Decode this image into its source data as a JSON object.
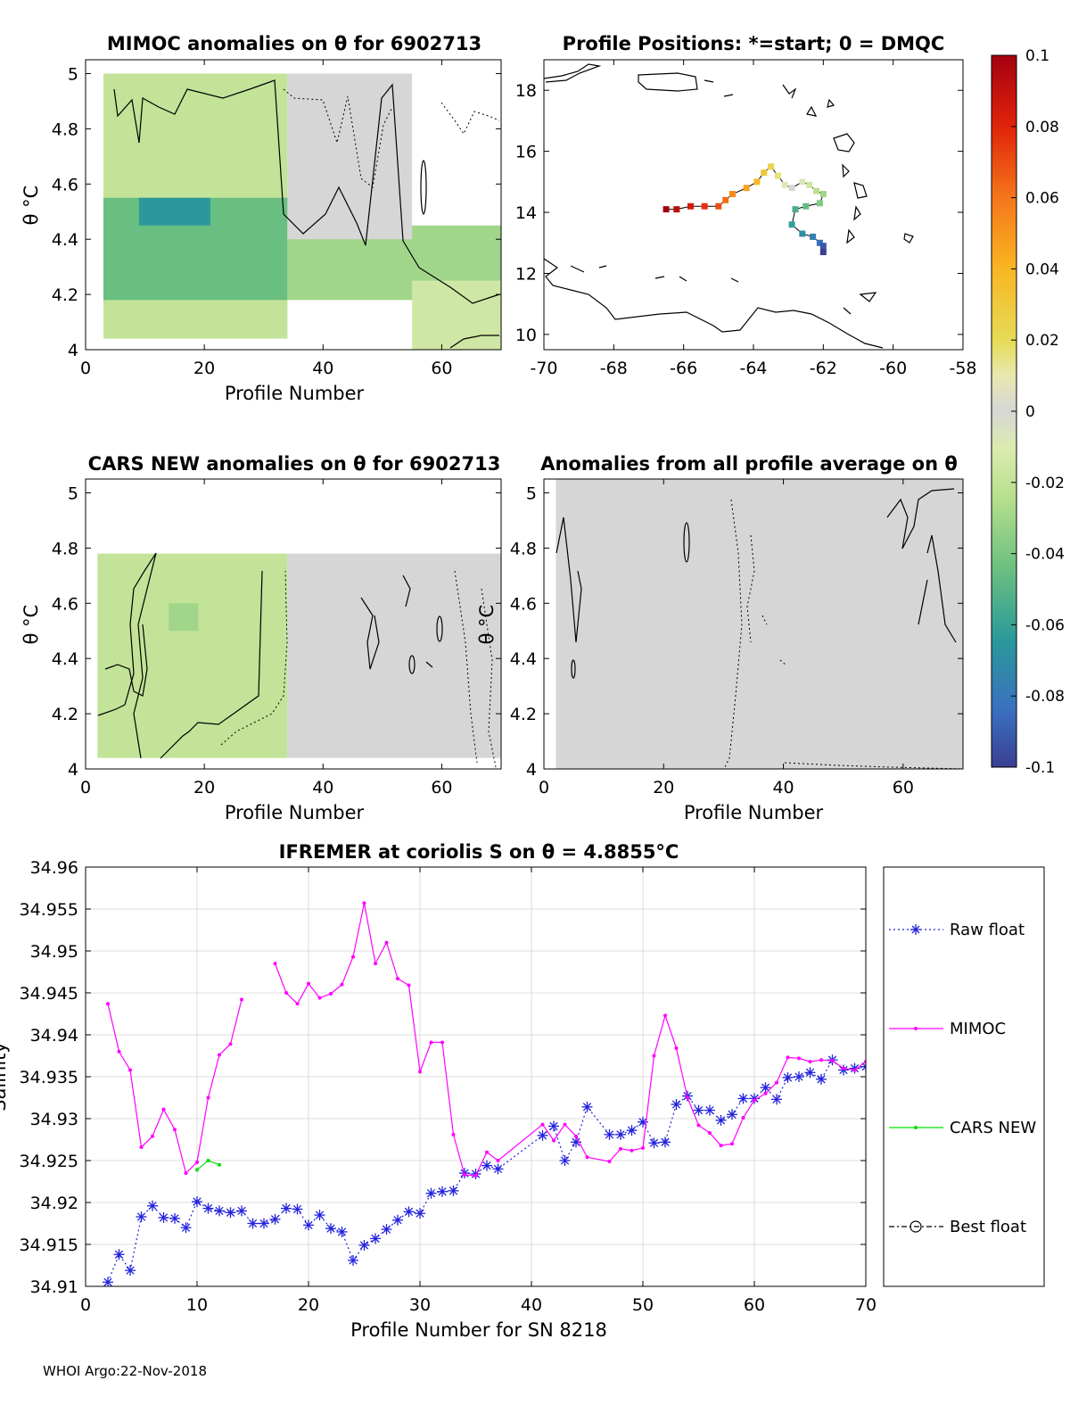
{
  "footer": "WHOI Argo:22-Nov-2018",
  "colors": {
    "raw_float": "#2222dd",
    "mimoc": "#ff00ff",
    "cars_new": "#00e000",
    "best_float": "#000000",
    "grid": "#dcdcdc",
    "neutral_fill": "#d6d6d6"
  },
  "chart_data": [
    {
      "id": "mimoc_anomalies",
      "type": "heatmap",
      "title": "MIMOC anomalies on θ  for 6902713",
      "xlabel": "Profile Number",
      "ylabel": "θ °C",
      "xlim": [
        0,
        70
      ],
      "ylim": [
        4,
        5.05
      ],
      "xticks": [
        "0",
        "20",
        "40",
        "60"
      ],
      "yticks": [
        "4",
        "4.2",
        "4.4",
        "4.6",
        "4.8",
        "5"
      ],
      "bands": [
        {
          "x": [
            3,
            34
          ],
          "y": [
            4.04,
            5.0
          ],
          "value": -0.02
        },
        {
          "x": [
            3,
            34
          ],
          "y": [
            4.18,
            4.55
          ],
          "value": -0.045
        },
        {
          "x": [
            9,
            21
          ],
          "y": [
            4.45,
            4.55
          ],
          "value": -0.065
        },
        {
          "x": [
            34,
            70
          ],
          "y": [
            4.18,
            4.45
          ],
          "value": -0.03
        },
        {
          "x": [
            34,
            55
          ],
          "y": [
            4.4,
            5.0
          ],
          "value": 0.0
        },
        {
          "x": [
            55,
            70
          ],
          "y": [
            4.0,
            4.25
          ],
          "value": -0.015
        }
      ]
    },
    {
      "id": "profile_positions",
      "type": "scatter",
      "title": "Profile Positions: *=start; 0 = DMQC",
      "xlim": [
        -70,
        -58
      ],
      "ylim": [
        9.5,
        19
      ],
      "xticks": [
        "-70",
        "-68",
        "-66",
        "-64",
        "-62",
        "-60",
        "-58"
      ],
      "yticks": [
        "10",
        "12",
        "14",
        "16",
        "18"
      ],
      "track_lon": [
        -66.5,
        -66.2,
        -65.8,
        -65.4,
        -65.0,
        -64.8,
        -64.6,
        -64.2,
        -63.9,
        -63.7,
        -63.5,
        -63.3,
        -63.1,
        -62.9,
        -62.6,
        -62.4,
        -62.2,
        -62.0,
        -62.1,
        -62.5,
        -62.8,
        -62.9,
        -62.6,
        -62.3,
        -62.1,
        -62.0,
        -62.0
      ],
      "track_lat": [
        14.1,
        14.1,
        14.2,
        14.2,
        14.2,
        14.4,
        14.6,
        14.8,
        15.0,
        15.3,
        15.5,
        15.2,
        14.9,
        14.8,
        15.0,
        14.9,
        14.7,
        14.6,
        14.3,
        14.2,
        14.1,
        13.6,
        13.3,
        13.2,
        13.0,
        12.9,
        12.7
      ],
      "colorbar": {
        "min": -0.1,
        "max": 0.1,
        "ticks": [
          "0.1",
          "0.08",
          "0.06",
          "0.04",
          "0.02",
          "0",
          "-0.02",
          "-0.04",
          "-0.06",
          "-0.08",
          "-0.1"
        ]
      }
    },
    {
      "id": "cars_anomalies",
      "type": "heatmap",
      "title": "CARS NEW anomalies on θ for 6902713",
      "xlabel": "Profile Number",
      "ylabel": "θ °C",
      "xlim": [
        0,
        70
      ],
      "ylim": [
        4,
        5.05
      ],
      "xticks": [
        "0",
        "20",
        "40",
        "60"
      ],
      "yticks": [
        "4",
        "4.2",
        "4.4",
        "4.6",
        "4.8",
        "5"
      ],
      "bands": [
        {
          "x": [
            2,
            34
          ],
          "y": [
            4.04,
            4.78
          ],
          "value": -0.02
        },
        {
          "x": [
            14,
            19
          ],
          "y": [
            4.5,
            4.6
          ],
          "value": -0.03
        },
        {
          "x": [
            34,
            70
          ],
          "y": [
            4.04,
            4.78
          ],
          "value": 0.0
        }
      ]
    },
    {
      "id": "all_profile_anomalies",
      "type": "heatmap",
      "title": "Anomalies from all profile average on θ",
      "xlabel": "Profile Number",
      "ylabel": "θ °C",
      "xlim": [
        0,
        70
      ],
      "ylim": [
        4,
        5.05
      ],
      "xticks": [
        "0",
        "20",
        "40",
        "60"
      ],
      "yticks": [
        "4",
        "4.2",
        "4.4",
        "4.6",
        "4.8",
        "5"
      ],
      "bands": [
        {
          "x": [
            2,
            70
          ],
          "y": [
            4.0,
            5.05
          ],
          "value": 0.0
        }
      ]
    },
    {
      "id": "salinity_series",
      "type": "line",
      "title": "IFREMER at coriolis S on θ = 4.8855°C",
      "xlabel": "Profile Number for SN 8218",
      "ylabel": "Salinity",
      "xlim": [
        0,
        70
      ],
      "ylim": [
        34.91,
        34.96
      ],
      "xticks": [
        "0",
        "10",
        "20",
        "30",
        "40",
        "50",
        "60",
        "70"
      ],
      "yticks": [
        "34.91",
        "34.915",
        "34.92",
        "34.925",
        "34.93",
        "34.935",
        "34.94",
        "34.945",
        "34.95",
        "34.955",
        "34.96"
      ],
      "legend_position": "right-outside",
      "series": [
        {
          "name": "Raw float",
          "style": "dotted-asterisk",
          "x": [
            2,
            3,
            4,
            5,
            6,
            7,
            8,
            9,
            10,
            11,
            12,
            13,
            14,
            15,
            16,
            17,
            18,
            19,
            20,
            21,
            22,
            23,
            24,
            25,
            26,
            27,
            28,
            29,
            30,
            31,
            32,
            33,
            34,
            35,
            36,
            37,
            41,
            42,
            43,
            44,
            45,
            47,
            48,
            49,
            50,
            51,
            52,
            53,
            54,
            55,
            56,
            57,
            58,
            59,
            60,
            61,
            62,
            63,
            64,
            65,
            66,
            67,
            68,
            69,
            70
          ],
          "values": [
            34.9105,
            34.9138,
            34.9119,
            34.9183,
            34.9196,
            34.9182,
            34.9181,
            34.917,
            34.9201,
            34.9193,
            34.919,
            34.9188,
            34.919,
            34.9175,
            34.9175,
            34.918,
            34.9193,
            34.9192,
            34.9173,
            34.9185,
            34.9169,
            34.9165,
            34.9131,
            34.9149,
            34.9157,
            34.9168,
            34.9179,
            34.9189,
            34.9187,
            34.9211,
            34.9213,
            34.9214,
            34.9235,
            34.9234,
            34.9244,
            34.924,
            34.928,
            34.9291,
            34.925,
            34.9272,
            34.9314,
            34.9281,
            34.9281,
            34.9286,
            34.9296,
            34.9271,
            34.9272,
            34.9317,
            34.9327,
            34.931,
            34.931,
            34.9298,
            34.9305,
            34.9324,
            34.9324,
            34.9337,
            34.9323,
            34.9349,
            34.935,
            34.9355,
            34.9347,
            34.937,
            34.9358,
            34.936,
            34.9362
          ]
        },
        {
          "name": "MIMOC",
          "style": "solid-dot",
          "segments": [
            {
              "x": [
                2,
                3,
                4,
                5,
                6,
                7,
                8,
                9,
                10,
                11,
                12,
                13,
                14
              ],
              "values": [
                34.9437,
                34.938,
                34.9358,
                34.9266,
                34.9279,
                34.9311,
                34.9287,
                34.9235,
                34.9248,
                34.9325,
                34.9376,
                34.9389,
                34.9442
              ]
            },
            {
              "x": [
                17,
                18,
                19,
                20,
                21,
                22,
                23,
                24,
                25,
                26,
                27,
                28,
                29,
                30,
                31,
                32,
                33,
                34,
                35,
                36,
                37,
                41,
                42,
                43,
                44,
                45,
                47,
                48,
                49,
                50,
                51,
                52,
                53,
                54,
                55,
                56,
                57,
                58,
                59,
                60,
                61,
                62,
                63,
                64,
                65,
                66,
                67,
                68,
                69,
                70
              ],
              "values": [
                34.9485,
                34.945,
                34.9437,
                34.9461,
                34.9444,
                34.9449,
                34.946,
                34.9493,
                34.9557,
                34.9485,
                34.951,
                34.9467,
                34.9459,
                34.9356,
                34.9391,
                34.9391,
                34.9281,
                34.9233,
                34.9232,
                34.926,
                34.925,
                34.9293,
                34.9274,
                34.9293,
                34.9279,
                34.9254,
                34.9249,
                34.9264,
                34.9262,
                34.9265,
                34.9375,
                34.9423,
                34.9384,
                34.9325,
                34.9292,
                34.9283,
                34.9268,
                34.927,
                34.9301,
                34.9322,
                34.933,
                34.9343,
                34.9373,
                34.9372,
                34.9368,
                34.937,
                34.9369,
                34.936,
                34.9358,
                34.9368
              ]
            }
          ]
        },
        {
          "name": "CARS NEW",
          "style": "solid-dot",
          "x": [
            10,
            11,
            12
          ],
          "values": [
            34.9239,
            34.925,
            34.9245
          ]
        },
        {
          "name": "Best float",
          "style": "dashdot-circle",
          "x": [],
          "values": []
        }
      ]
    }
  ]
}
